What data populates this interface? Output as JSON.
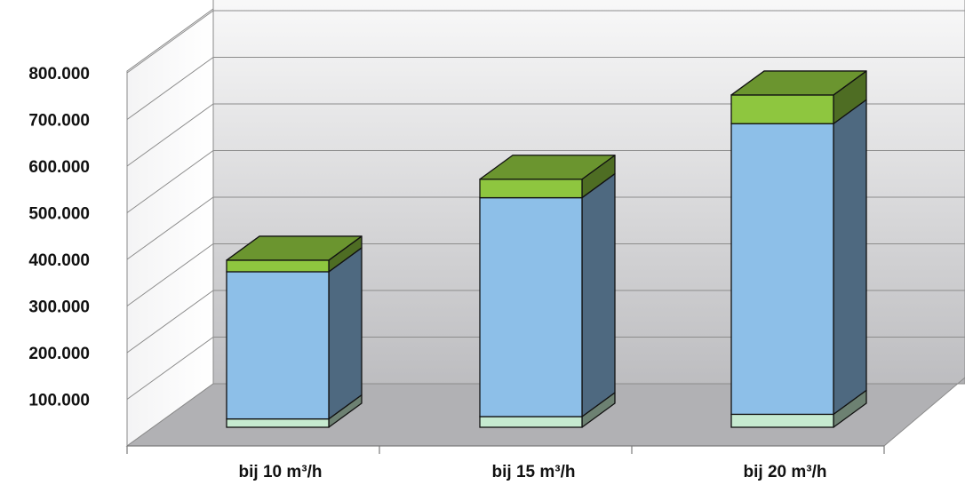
{
  "chart_data": {
    "type": "bar",
    "stacked": true,
    "three_d": true,
    "categories": [
      "bij 10 m³/h",
      "bij 15 m³/h",
      "bij 20 m³/h"
    ],
    "series": [
      {
        "values": [
          18000,
          23000,
          28000
        ],
        "color": "#c6ead0"
      },
      {
        "values": [
          318000,
          473000,
          628000
        ],
        "color": "#8dbfe8"
      },
      {
        "values": [
          25000,
          40000,
          62000
        ],
        "color": "#8ec63f"
      }
    ],
    "ylim": [
      0,
      800000
    ],
    "yticks": [
      100000,
      200000,
      300000,
      400000,
      500000,
      600000,
      700000,
      800000
    ],
    "ytick_labels": [
      "100.000",
      "200.000",
      "300.000",
      "400.000",
      "500.000",
      "600.000",
      "700.000",
      "800.000"
    ],
    "grid": true,
    "legend": "none",
    "wall_gradient": [
      "#ffffff",
      "#bdbdc0"
    ],
    "floor_color": "#b1b1b4"
  }
}
